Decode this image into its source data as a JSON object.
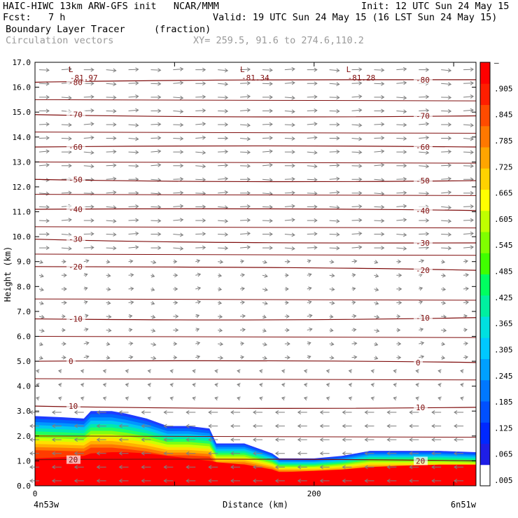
{
  "header": {
    "line1_left": "HAIC-HIWC 13km ARW-GFS init   NCAR/MMM",
    "line1_right": "Init: 12 UTC Sun 24 May 15",
    "line2_left": "Fcst:   7 h",
    "line2_right": "Valid: 19 UTC Sun 24 May 15 (16 LST Sun 24 May 15)",
    "field": "Boundary Layer Tracer",
    "field_units": "(fraction)",
    "vectors": "Circulation vectors",
    "xy": "XY= 259.5, 91.6 to 274.6,110.2"
  },
  "colors": {
    "contour": "#7f0d0d",
    "vector": "#7f7f7f",
    "palette": [
      "#ffffff",
      "#ff0000",
      "#ff2800",
      "#ff5000",
      "#ff7a00",
      "#ffa500",
      "#ffc800",
      "#ffee00",
      "#e0ff00",
      "#b0ff00",
      "#78ff00",
      "#30ff30",
      "#00ff80",
      "#00e8c0",
      "#00c8ff",
      "#00a0ff",
      "#0064ff",
      "#0030ff",
      "#ff1e1e"
    ]
  },
  "chart_data": {
    "type": "heatmap",
    "title": "Boundary Layer Tracer",
    "units": "(fraction)",
    "xlabel": "Distance (km)",
    "ylabel": "Height (km)",
    "xlim": [
      0,
      316
    ],
    "ylim": [
      0,
      17
    ],
    "x_ticks": [
      0,
      200
    ],
    "x_tick_labels": [
      "0",
      "200"
    ],
    "x_end_labels": [
      "4n53w",
      "6n51w"
    ],
    "y_ticks": [
      0,
      1,
      2,
      3,
      4,
      5,
      6,
      7,
      8,
      9,
      10,
      11,
      12,
      13,
      14,
      15,
      16,
      17
    ],
    "y_tick_labels": [
      "0.0",
      "1.0",
      "2.0",
      "3.0",
      "4.0",
      "5.0",
      "6.0",
      "7.0",
      "8.0",
      "9.0",
      "10.0",
      "11.0",
      "12.0",
      "13.0",
      "14.0",
      "15.0",
      "16.0",
      "17.0"
    ],
    "colorbar_labels": [
      ".005",
      ".065",
      ".125",
      ".185",
      ".245",
      ".305",
      ".365",
      ".425",
      ".485",
      ".545",
      ".605",
      ".665",
      ".725",
      ".785",
      ".845",
      ".905",
      "–"
    ],
    "tracer_top_km": {
      "x": [
        0,
        20,
        35,
        40,
        55,
        65,
        80,
        95,
        110,
        125,
        130,
        150,
        160,
        170,
        175,
        180,
        200,
        220,
        240,
        260,
        290,
        316
      ],
      "top": [
        2.8,
        2.75,
        2.7,
        3.0,
        3.0,
        2.9,
        2.7,
        2.4,
        2.4,
        2.3,
        1.7,
        1.7,
        1.5,
        1.3,
        1.1,
        1.1,
        1.1,
        1.2,
        1.4,
        1.4,
        1.4,
        1.35
      ],
      "red_top": [
        1.1,
        1.15,
        1.2,
        1.3,
        1.35,
        1.35,
        1.3,
        1.2,
        1.1,
        1.0,
        0.95,
        0.85,
        0.75,
        0.65,
        0.55,
        0.55,
        0.6,
        0.65,
        0.75,
        0.8,
        0.85,
        0.85
      ]
    },
    "temperature_contours": [
      {
        "label": "-80",
        "y_left": 16.2,
        "y_right": 16.3
      },
      {
        "label": "-70",
        "y_left": 14.9,
        "y_right": 14.85
      },
      {
        "label": "-60",
        "y_left": 13.6,
        "y_right": 13.6
      },
      {
        "label": "-50",
        "y_left": 12.3,
        "y_right": 12.25
      },
      {
        "label": "-40",
        "y_left": 11.1,
        "y_right": 11.05
      },
      {
        "label": "-30",
        "y_left": 9.9,
        "y_right": 9.75
      },
      {
        "label": "-20",
        "y_left": 8.8,
        "y_right": 8.65
      },
      {
        "label": "-10",
        "y_left": 6.7,
        "y_right": 6.75
      },
      {
        "label": "0",
        "y_left": 5.0,
        "y_right": 4.95
      },
      {
        "label": "10",
        "y_left": 3.2,
        "y_right": 3.15
      },
      {
        "label": "20",
        "y_left": 1.05,
        "y_right": 1.0
      }
    ],
    "minima": [
      {
        "label": "L",
        "value": "-81.97",
        "x": 27,
        "y": 16.6
      },
      {
        "label": "L",
        "value": "-81.34",
        "x": 150,
        "y": 16.6
      },
      {
        "label": "L",
        "value": "-81.28",
        "x": 226,
        "y": 16.6
      }
    ]
  }
}
